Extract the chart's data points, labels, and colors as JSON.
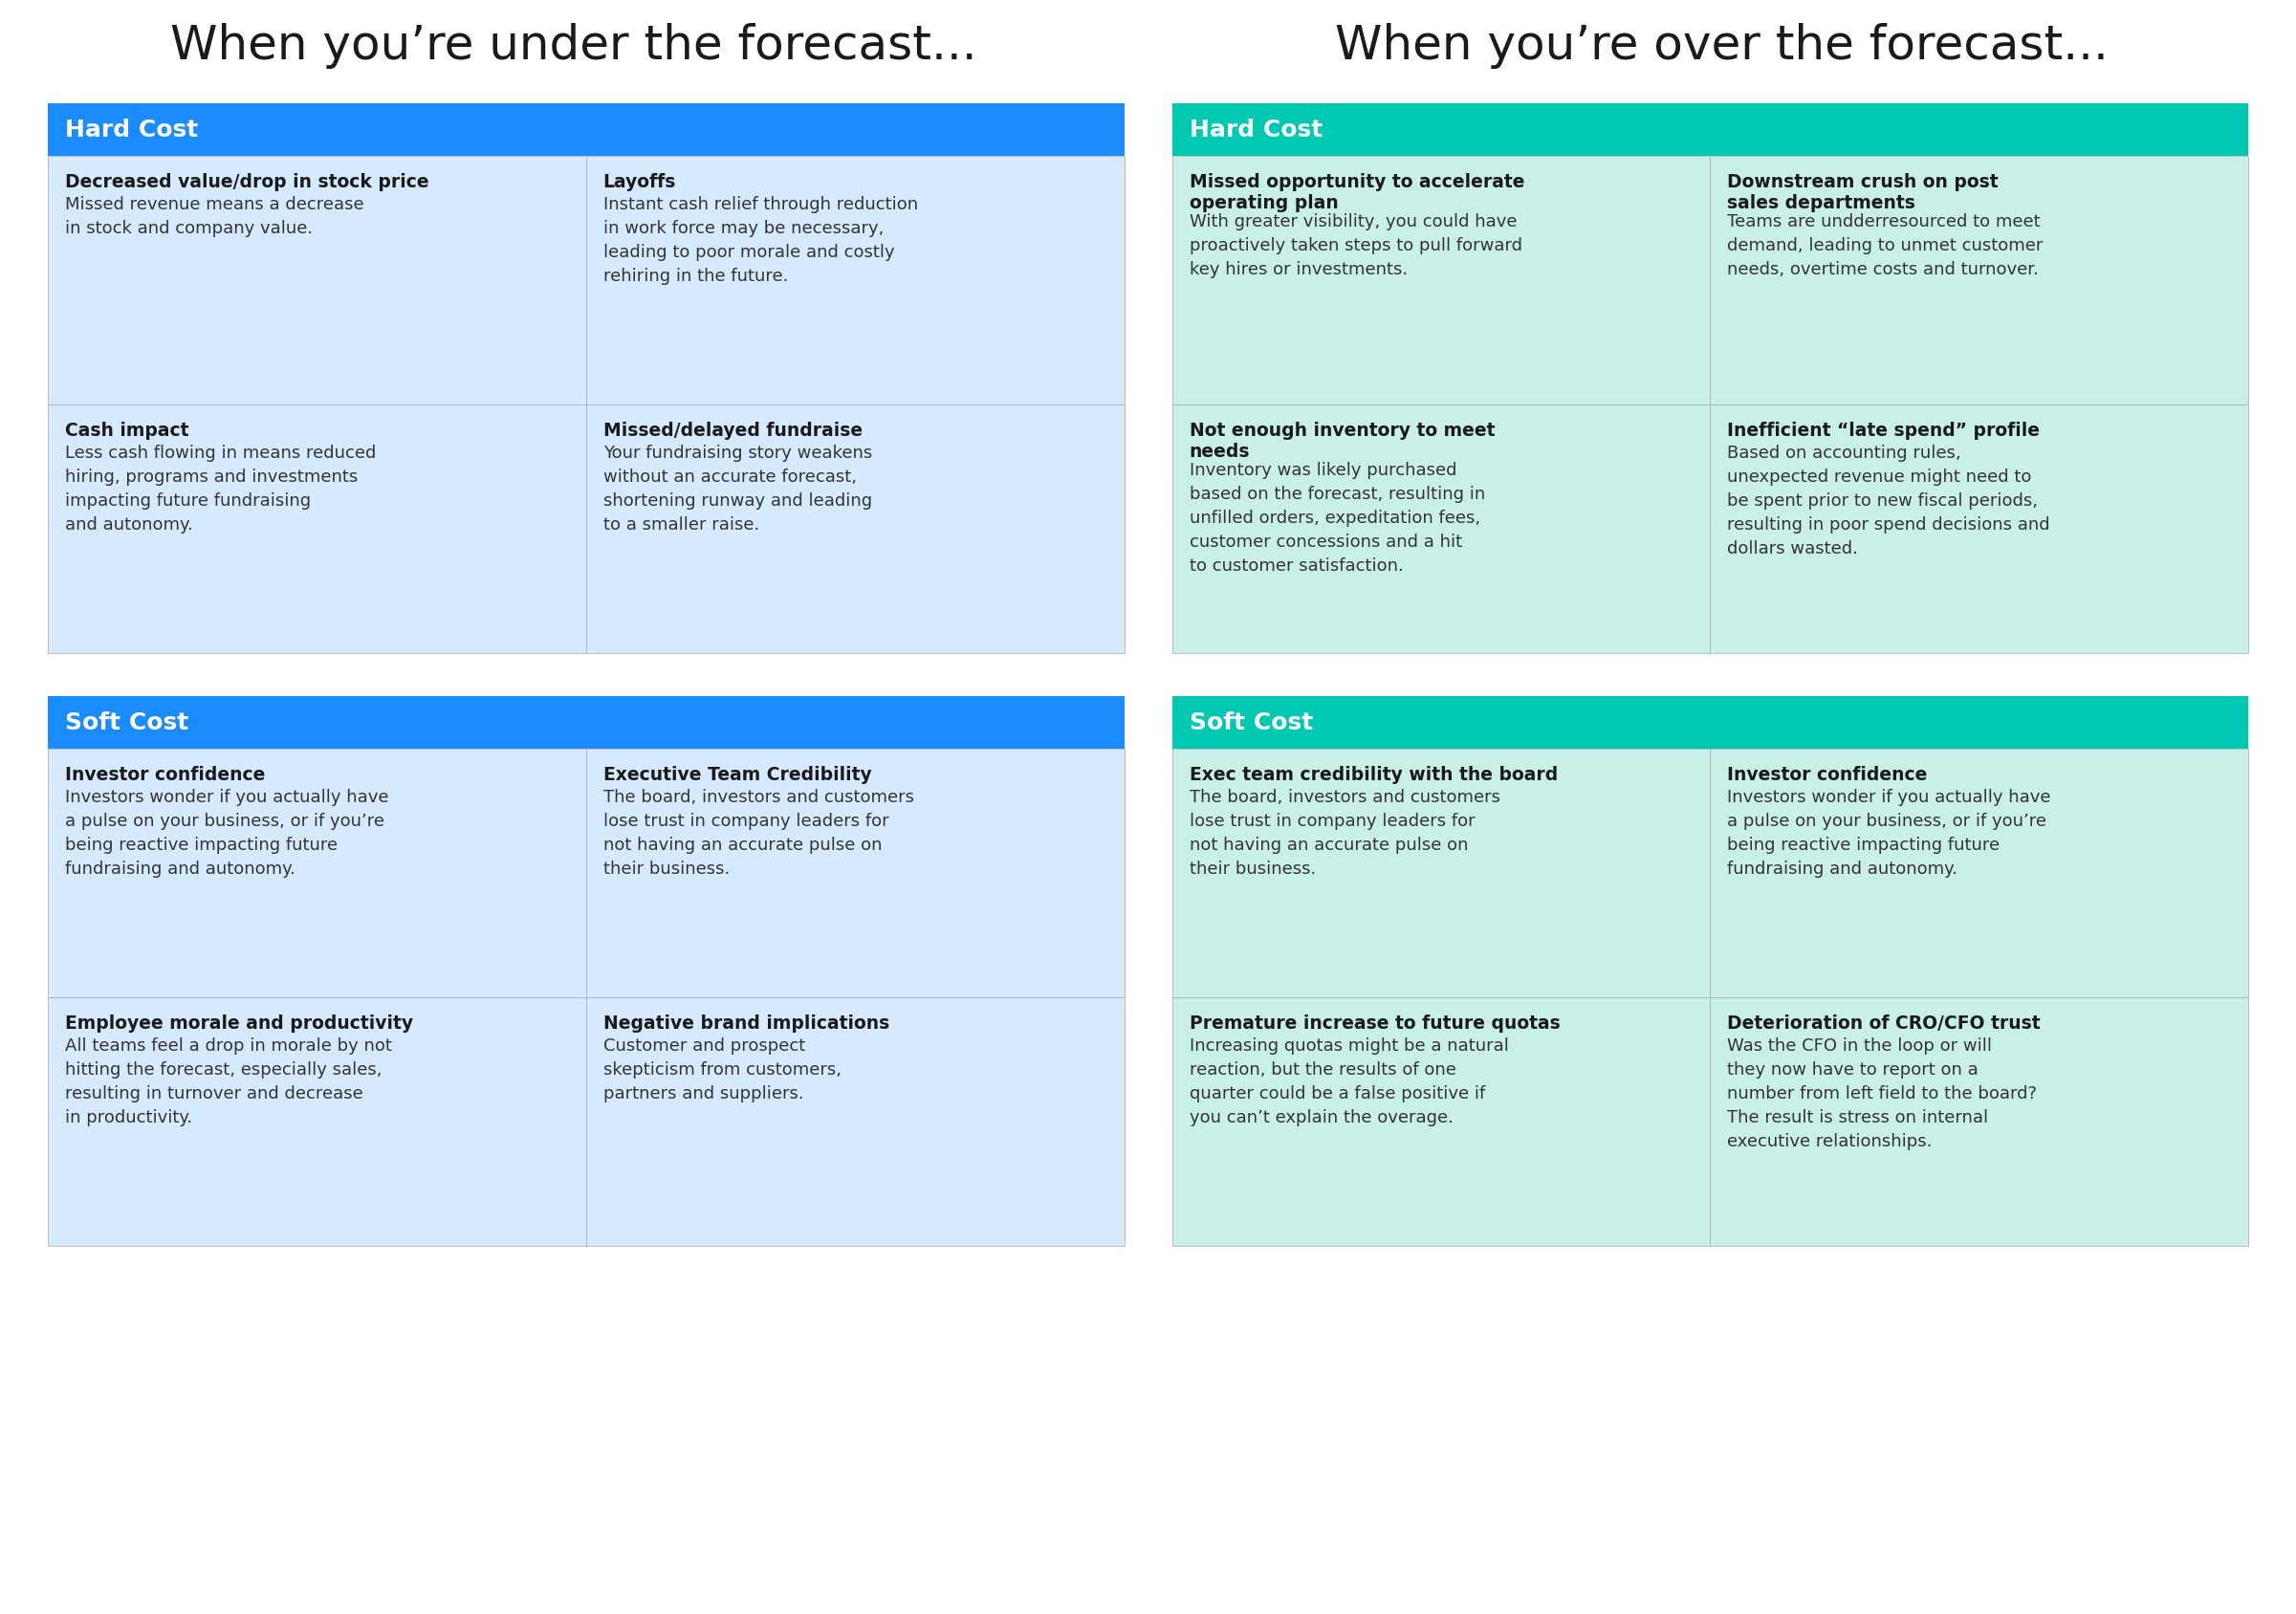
{
  "title_left": "When you’re under the forecast...",
  "title_right": "When you’re over the forecast...",
  "background_color": "#ffffff",
  "left_header_color": "#1a8cff",
  "right_header_color": "#00c9b1",
  "left_cell_color": "#d6eaff",
  "right_cell_color": "#c8f0e8",
  "header_text_color": "#ffffff",
  "cell_title_color": "#1a1a1a",
  "cell_body_color": "#333333",
  "title_color": "#1a1a1a",
  "left_sections": [
    {
      "header": "Hard Cost",
      "cells": [
        {
          "title": "Decreased value/drop in stock price",
          "body": "Missed revenue means a decrease\nin stock and company value."
        },
        {
          "title": "Layoffs",
          "body": "Instant cash relief through reduction\nin work force may be necessary,\nleading to poor morale and costly\nrehiring in the future."
        },
        {
          "title": "Cash impact",
          "body": "Less cash flowing in means reduced\nhiring, programs and investments\nimpacting future fundraising\nand autonomy."
        },
        {
          "title": "Missed/delayed fundraise",
          "body": "Your fundraising story weakens\nwithout an accurate forecast,\nshortening runway and leading\nto a smaller raise."
        }
      ]
    },
    {
      "header": "Soft Cost",
      "cells": [
        {
          "title": "Investor confidence",
          "body": "Investors wonder if you actually have\na pulse on your business, or if you’re\nbeing reactive impacting future\nfundraising and autonomy."
        },
        {
          "title": "Executive Team Credibility",
          "body": "The board, investors and customers\nlose trust in company leaders for\nnot having an accurate pulse on\ntheir business."
        },
        {
          "title": "Employee morale and productivity",
          "body": "All teams feel a drop in morale by not\nhitting the forecast, especially sales,\nresulting in turnover and decrease\nin productivity."
        },
        {
          "title": "Negative brand implications",
          "body": "Customer and prospect\nskepticism from customers,\npartners and suppliers."
        }
      ]
    }
  ],
  "right_sections": [
    {
      "header": "Hard Cost",
      "cells": [
        {
          "title": "Missed opportunity to accelerate\noperating plan",
          "body": "With greater visibility, you could have\nproactively taken steps to pull forward\nkey hires or investments."
        },
        {
          "title": "Downstream crush on post\nsales departments",
          "body": "Teams are undderresourced to meet\ndemand, leading to unmet customer\nneeds, overtime costs and turnover."
        },
        {
          "title": "Not enough inventory to meet\nneeds",
          "body": "Inventory was likely purchased\nbased on the forecast, resulting in\nunfilled orders, expeditation fees,\ncustomer concessions and a hit\nto customer satisfaction."
        },
        {
          "title": "Inefficient “late spend” profile",
          "body": "Based on accounting rules,\nunexpected revenue might need to\nbe spent prior to new fiscal periods,\nresulting in poor spend decisions and\ndollars wasted."
        }
      ]
    },
    {
      "header": "Soft Cost",
      "cells": [
        {
          "title": "Exec team credibility with the board",
          "body": "The board, investors and customers\nlose trust in company leaders for\nnot having an accurate pulse on\ntheir business."
        },
        {
          "title": "Investor confidence",
          "body": "Investors wonder if you actually have\na pulse on your business, or if you’re\nbeing reactive impacting future\nfundraising and autonomy."
        },
        {
          "title": "Premature increase to future quotas",
          "body": "Increasing quotas might be a natural\nreaction, but the results of one\nquarter could be a false positive if\nyou can’t explain the overage."
        },
        {
          "title": "Deterioration of CRO/CFO trust",
          "body": "Was the CFO in the loop or will\nthey now have to report on a\nnumber from left field to the board?\nThe result is stress on internal\nexecutive relationships."
        }
      ]
    }
  ]
}
